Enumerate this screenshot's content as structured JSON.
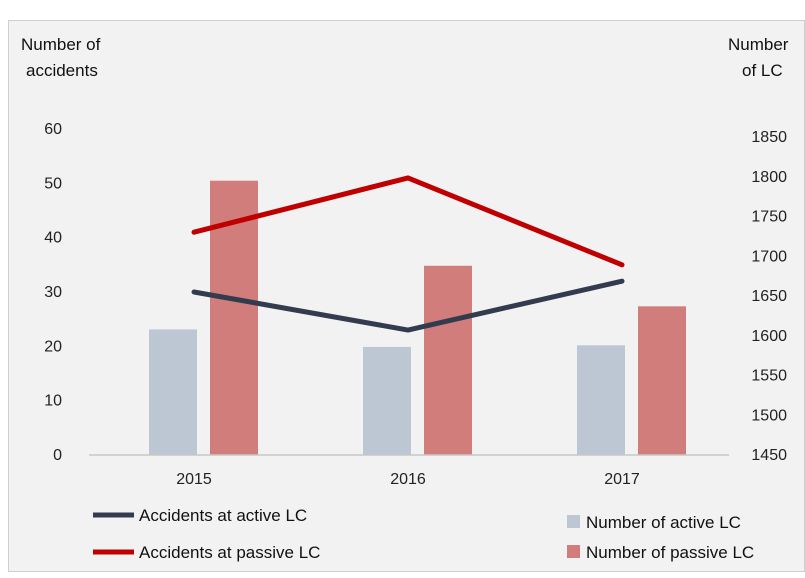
{
  "chart_data": {
    "type": "bar",
    "categories": [
      "2015",
      "2016",
      "2017"
    ],
    "y_left": {
      "label_lines": [
        "Number of",
        "accidents"
      ],
      "ylim": [
        0,
        60
      ],
      "ticks": [
        "0",
        "10",
        "20",
        "30",
        "40",
        "50",
        "60"
      ]
    },
    "y_right": {
      "label_lines": [
        "Number",
        "of LC"
      ],
      "ylim": [
        1450,
        1850
      ],
      "ticks": [
        "1450",
        "1500",
        "1550",
        "1600",
        "1650",
        "1700",
        "1750",
        "1800",
        "1850"
      ]
    },
    "series": [
      {
        "name": "Number of active LC",
        "kind": "bar",
        "axis": "right",
        "color": "#bdc7d3",
        "values": [
          1608,
          1586,
          1588
        ]
      },
      {
        "name": "Number of passive LC",
        "kind": "bar",
        "axis": "right",
        "color": "#d17d7b",
        "values": [
          1795,
          1688,
          1637
        ]
      },
      {
        "name": "Accidents at active LC",
        "kind": "line",
        "axis": "left",
        "color": "#323c4e",
        "values": [
          30,
          23,
          32
        ]
      },
      {
        "name": "Accidents at passive LC",
        "kind": "line",
        "axis": "left",
        "color": "#c00000",
        "values": [
          41,
          51,
          35
        ]
      }
    ],
    "grid": false,
    "legend_position": "bottom"
  }
}
